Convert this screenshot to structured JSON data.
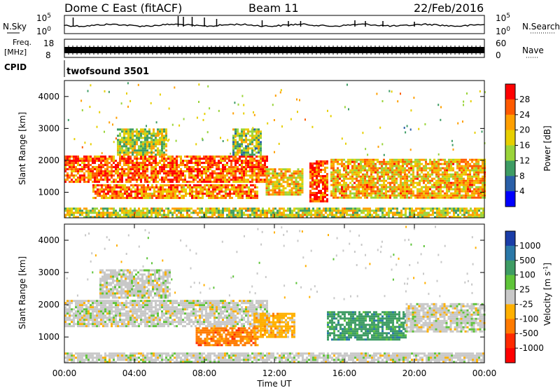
{
  "header": {
    "station": "Dome C East (fitACF)",
    "beam": "Beam 11",
    "date": "22/Feb/2016"
  },
  "noise_panel": {
    "left_label": "N.Sky",
    "right_label": "N.Search",
    "left_ticks": [
      "10^5",
      "10^0"
    ],
    "right_ticks": [
      "10^5",
      "10^0"
    ]
  },
  "freq_panel": {
    "left_label_line1": "Freq.",
    "left_label_line2": "[MHz]",
    "left_ticks": [
      "18",
      "8"
    ],
    "right_label": "Nave",
    "right_ticks": [
      "60",
      "0"
    ]
  },
  "cpid_panel": {
    "label": "CPID",
    "program": "twofsound 3501"
  },
  "chart_data": [
    {
      "type": "heatmap",
      "title": "Power",
      "ylabel": "Slant Range [km]",
      "xlabel": "",
      "ylim": [
        200,
        4500
      ],
      "xlim": [
        0,
        24
      ],
      "yticks": [
        "1000",
        "2000",
        "3000",
        "4000"
      ],
      "colorbar_label": "Power [dB]",
      "colorbar_ticks": [
        "28",
        "24",
        "20",
        "16",
        "12",
        "8",
        "4"
      ],
      "colorbar_colors": [
        "#ff0000",
        "#ff5a00",
        "#ff9f00",
        "#e7cf00",
        "#9ad43a",
        "#3e9c64",
        "#2a5fa8",
        "#0000ff"
      ],
      "regions": [
        {
          "x0": 0.0,
          "x1": 11.6,
          "y0": 1350,
          "y1": 2150,
          "level": 0.78
        },
        {
          "x0": 1.6,
          "x1": 11.0,
          "y0": 800,
          "y1": 1250,
          "level": 0.7
        },
        {
          "x0": 3.0,
          "x1": 5.8,
          "y0": 2200,
          "y1": 3000,
          "level": 0.42
        },
        {
          "x0": 9.6,
          "x1": 11.2,
          "y0": 2200,
          "y1": 3000,
          "level": 0.38
        },
        {
          "x0": 11.5,
          "x1": 13.6,
          "y0": 950,
          "y1": 1750,
          "level": 0.55
        },
        {
          "x0": 14.0,
          "x1": 15.0,
          "y0": 700,
          "y1": 2000,
          "level": 0.82
        },
        {
          "x0": 15.2,
          "x1": 24.0,
          "y0": 800,
          "y1": 2050,
          "level": 0.6
        },
        {
          "x0": 0.0,
          "x1": 24.0,
          "y0": 250,
          "y1": 520,
          "level": 0.45
        }
      ]
    },
    {
      "type": "heatmap",
      "title": "Velocity",
      "ylabel": "Slant Range [km]",
      "xlabel": "Time UT",
      "ylim": [
        200,
        4500
      ],
      "xlim": [
        0,
        24
      ],
      "yticks": [
        "1000",
        "2000",
        "3000",
        "4000"
      ],
      "xticks": [
        "00:00",
        "04:00",
        "08:00",
        "12:00",
        "16:00",
        "20:00",
        "00:00"
      ],
      "colorbar_label": "Velocity [m s^-1]",
      "colorbar_ticks": [
        "1000",
        "500",
        "100",
        "25",
        "-25",
        "-100",
        "-500",
        "-1000"
      ],
      "colorbar_colors": [
        "#1a3da8",
        "#2a78a8",
        "#3e9c64",
        "#5fc43a",
        "#c8c8c8",
        "#ffb000",
        "#ff7a00",
        "#ff2a00",
        "#ff0000"
      ],
      "regions": [
        {
          "x0": 0.0,
          "x1": 11.6,
          "y0": 1350,
          "y1": 2150,
          "vel": 0
        },
        {
          "x0": 2.0,
          "x1": 6.0,
          "y0": 2200,
          "y1": 3100,
          "vel": 0
        },
        {
          "x0": 7.5,
          "x1": 11.0,
          "y0": 750,
          "y1": 1300,
          "vel": -500
        },
        {
          "x0": 10.8,
          "x1": 13.2,
          "y0": 1000,
          "y1": 1750,
          "vel": -100
        },
        {
          "x0": 15.0,
          "x1": 19.5,
          "y0": 900,
          "y1": 1800,
          "vel": 100
        },
        {
          "x0": 19.5,
          "x1": 24.0,
          "y0": 1200,
          "y1": 2050,
          "vel": 0
        },
        {
          "x0": 0.0,
          "x1": 24.0,
          "y0": 250,
          "y1": 520,
          "vel": 25
        }
      ]
    }
  ]
}
